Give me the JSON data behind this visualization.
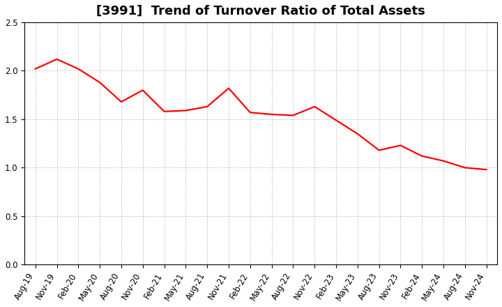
{
  "title": "[3991]  Trend of Turnover Ratio of Total Assets",
  "x_labels": [
    "Aug-19",
    "Nov-19",
    "Feb-20",
    "May-20",
    "Aug-20",
    "Nov-20",
    "Feb-21",
    "May-21",
    "Aug-21",
    "Nov-21",
    "Feb-22",
    "May-22",
    "Aug-22",
    "Nov-22",
    "Feb-23",
    "May-23",
    "Aug-23",
    "Nov-23",
    "Feb-24",
    "May-24",
    "Aug-24",
    "Nov-24"
  ],
  "y_values": [
    2.02,
    2.12,
    2.02,
    1.88,
    1.68,
    1.8,
    1.58,
    1.59,
    1.63,
    1.82,
    1.57,
    1.55,
    1.54,
    1.63,
    1.49,
    1.35,
    1.18,
    1.23,
    1.12,
    1.07,
    1.0,
    0.98
  ],
  "line_color": "#ff0000",
  "line_width": 1.6,
  "ylim": [
    0.0,
    2.5
  ],
  "yticks": [
    0.0,
    0.5,
    1.0,
    1.5,
    2.0,
    2.5
  ],
  "background_color": "#ffffff",
  "grid_color": "#aaaaaa",
  "title_fontsize": 13,
  "tick_fontsize": 8.5,
  "figsize": [
    7.2,
    4.4
  ],
  "dpi": 100
}
